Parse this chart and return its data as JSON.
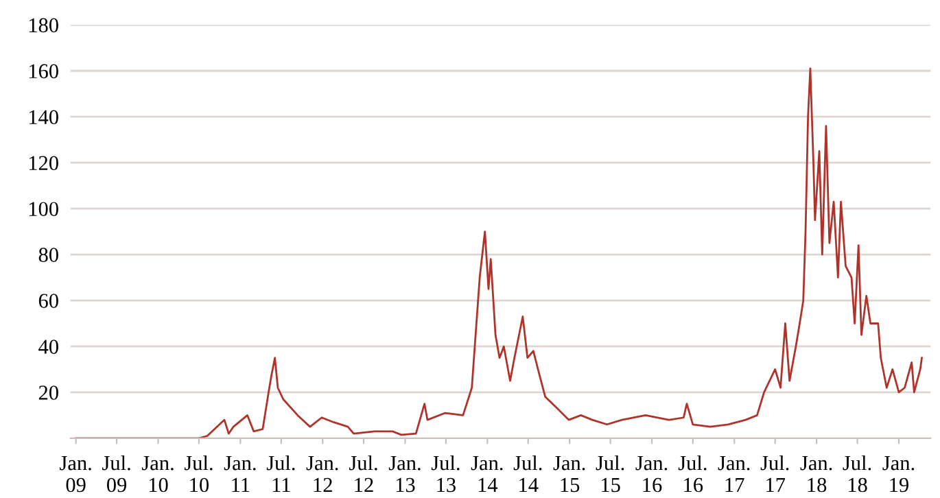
{
  "chart_data": {
    "type": "line",
    "x": [
      "2009-01-01",
      "2010-07-01",
      "2010-08-07",
      "2010-10-22",
      "2010-11-10",
      "2010-12-01",
      "2011-02-01",
      "2011-03-01",
      "2011-04-10",
      "2011-05-06",
      "2011-05-18",
      "2011-06-03",
      "2011-06-16",
      "2011-07-10",
      "2011-09-12",
      "2011-11-06",
      "2011-12-28",
      "2012-02-18",
      "2012-04-22",
      "2012-05-18",
      "2012-08-18",
      "2012-11-06",
      "2012-12-15",
      "2013-02-18",
      "2013-03-28",
      "2013-04-10",
      "2013-06-28",
      "2013-09-15",
      "2013-10-24",
      "2013-11-12",
      "2013-11-28",
      "2013-12-21",
      "2014-01-06",
      "2014-01-16",
      "2014-02-06",
      "2014-02-24",
      "2014-03-15",
      "2014-04-12",
      "2014-05-01",
      "2014-06-07",
      "2014-06-28",
      "2014-07-24",
      "2014-08-19",
      "2014-09-15",
      "2014-11-07",
      "2014-12-28",
      "2015-02-20",
      "2015-04-12",
      "2015-06-16",
      "2015-08-21",
      "2015-12-04",
      "2016-03-17",
      "2016-05-21",
      "2016-06-04",
      "2016-07-01",
      "2016-09-16",
      "2016-12-04",
      "2017-02-20",
      "2017-04-12",
      "2017-05-13",
      "2017-07-01",
      "2017-07-25",
      "2017-08-15",
      "2017-09-03",
      "2017-10-01",
      "2017-10-18",
      "2017-11-03",
      "2017-11-13",
      "2017-11-24",
      "2017-12-04",
      "2017-12-18",
      "2017-12-25",
      "2018-01-13",
      "2018-01-26",
      "2018-02-12",
      "2018-02-27",
      "2018-03-18",
      "2018-04-06",
      "2018-04-19",
      "2018-05-10",
      "2018-06-05",
      "2018-06-19",
      "2018-07-06",
      "2018-07-19",
      "2018-08-10",
      "2018-08-28",
      "2018-10-01",
      "2018-10-13",
      "2018-11-08",
      "2018-12-04",
      "2019-01-01",
      "2019-01-27",
      "2019-02-27",
      "2019-03-10",
      "2019-04-06",
      "2019-04-13"
    ],
    "series": [
      {
        "color": "#b0332b",
        "values": [
          0,
          0,
          1,
          8,
          2,
          5,
          10,
          3,
          4,
          20,
          27,
          35,
          22,
          17,
          10,
          5,
          9,
          7,
          5,
          2,
          3,
          3,
          1.5,
          2,
          15,
          8,
          11,
          10,
          22,
          48,
          70,
          90,
          65,
          78,
          45,
          35,
          40,
          25,
          35,
          53,
          35,
          38,
          28,
          18,
          13,
          8,
          10,
          8,
          6,
          8,
          10,
          8,
          9,
          15,
          6,
          5,
          6,
          8,
          10,
          20,
          30,
          22,
          50,
          25,
          40,
          50,
          60,
          90,
          140,
          161,
          120,
          95,
          125,
          80,
          136,
          85,
          103,
          70,
          103,
          75,
          70,
          50,
          84,
          45,
          62,
          50,
          50,
          35,
          22,
          30,
          20,
          22,
          33,
          20,
          30,
          35
        ]
      }
    ],
    "xlim": [
      "2008-12-08",
      "2019-05-22"
    ],
    "xticks": [
      {
        "value": "2009-01-01",
        "label": "Jan.\n09"
      },
      {
        "value": "2009-07-01",
        "label": "Jul.\n09"
      },
      {
        "value": "2010-01-01",
        "label": "Jan.\n10"
      },
      {
        "value": "2010-07-01",
        "label": "Jul.\n10"
      },
      {
        "value": "2011-01-01",
        "label": "Jan.\n11"
      },
      {
        "value": "2011-07-01",
        "label": "Jul.\n11"
      },
      {
        "value": "2012-01-01",
        "label": "Jan.\n12"
      },
      {
        "value": "2012-07-01",
        "label": "Jul.\n12"
      },
      {
        "value": "2013-01-01",
        "label": "Jan.\n13"
      },
      {
        "value": "2013-07-01",
        "label": "Jul.\n13"
      },
      {
        "value": "2014-01-01",
        "label": "Jan.\n14"
      },
      {
        "value": "2014-07-01",
        "label": "Jul.\n14"
      },
      {
        "value": "2015-01-01",
        "label": "Jan.\n15"
      },
      {
        "value": "2015-07-01",
        "label": "Jul.\n15"
      },
      {
        "value": "2016-01-01",
        "label": "Jan.\n16"
      },
      {
        "value": "2016-07-01",
        "label": "Jul.\n16"
      },
      {
        "value": "2017-01-01",
        "label": "Jan.\n17"
      },
      {
        "value": "2017-07-01",
        "label": "Jul.\n17"
      },
      {
        "value": "2018-01-01",
        "label": "Jan.\n18"
      },
      {
        "value": "2018-07-01",
        "label": "Jul.\n18"
      },
      {
        "value": "2019-01-01",
        "label": "Jan.\n19"
      }
    ],
    "ylim": [
      0,
      180
    ],
    "yticks": [
      20,
      40,
      60,
      80,
      100,
      120,
      140,
      160,
      180
    ],
    "grid": "y",
    "line_style": "solid"
  }
}
